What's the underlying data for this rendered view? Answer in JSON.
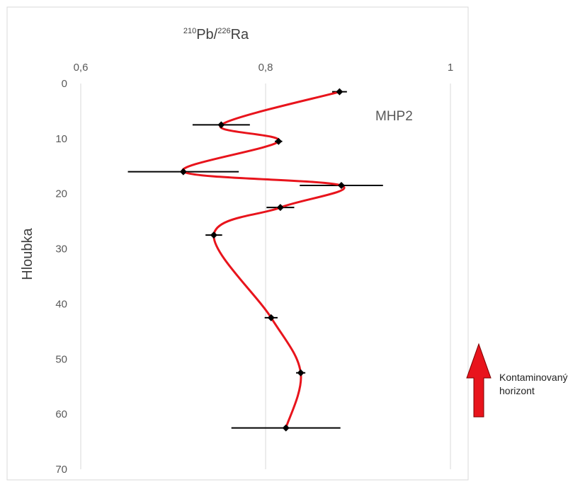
{
  "chart_data": {
    "type": "scatter",
    "title": {
      "sup1": "210",
      "base1": "Pb/",
      "sup2": "226",
      "base2": "Ra"
    },
    "ylabel": "Hloubka",
    "x_axis": {
      "position": "top",
      "range": [
        0.6,
        1.0
      ],
      "ticks": [
        0.6,
        0.8,
        1.0
      ],
      "tick_labels": [
        "0,6",
        "0,8",
        "1"
      ],
      "gridlines": true
    },
    "y_axis": {
      "inverted": true,
      "range": [
        0,
        70
      ],
      "ticks": [
        0,
        10,
        20,
        30,
        40,
        50,
        60,
        70
      ],
      "tick_labels": [
        "0",
        "10",
        "20",
        "30",
        "40",
        "50",
        "60",
        "70"
      ]
    },
    "series": [
      {
        "name": "MHP2",
        "line": "smooth",
        "line_color": "#e8141c",
        "marker": "diamond",
        "marker_color": "#000000",
        "points": [
          {
            "x": 0.88,
            "y": 1.5,
            "xerr": 0.008
          },
          {
            "x": 0.752,
            "y": 7.5,
            "xerr": 0.031
          },
          {
            "x": 0.814,
            "y": 10.5,
            "xerr": 0.004
          },
          {
            "x": 0.711,
            "y": 16.0,
            "xerr": 0.06
          },
          {
            "x": 0.882,
            "y": 18.5,
            "xerr": 0.045
          },
          {
            "x": 0.816,
            "y": 22.5,
            "xerr": 0.015
          },
          {
            "x": 0.744,
            "y": 27.5,
            "xerr": 0.009
          },
          {
            "x": 0.806,
            "y": 42.5,
            "xerr": 0.007
          },
          {
            "x": 0.838,
            "y": 52.5,
            "xerr": 0.005
          },
          {
            "x": 0.822,
            "y": 62.5,
            "xerr": 0.059
          }
        ]
      }
    ],
    "annotation": {
      "text_lines": [
        "Kontaminovaný",
        "horizont"
      ],
      "arrow": "up",
      "arrow_color": "#e8141c"
    },
    "colors": {
      "axis": "#d9d9d9",
      "gridline": "#d9d9d9",
      "errorbar": "#000000"
    }
  }
}
